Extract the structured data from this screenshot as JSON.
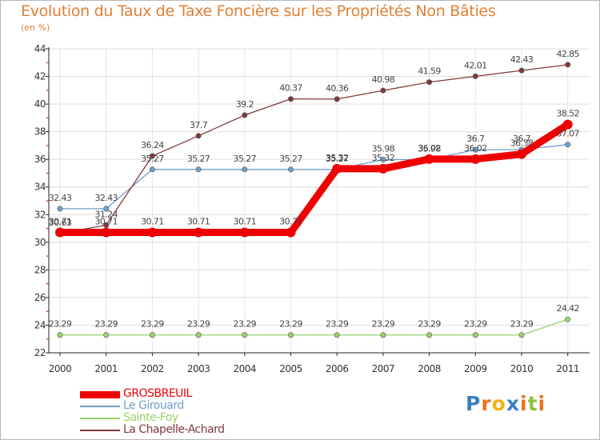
{
  "title": "Evolution du Taux de Taxe Foncière sur les Propriétés Non Bâties",
  "subtitle": "(en %)",
  "logo": {
    "letters": [
      "P",
      "r",
      "o",
      "x",
      "i",
      "t",
      "i"
    ],
    "colors": [
      "#3a7fc6",
      "#e8731a",
      "#f2b21a",
      "#3a7fc6",
      "#e8731a",
      "#8bc23e",
      "#e8731a"
    ]
  },
  "chart_data": {
    "type": "line",
    "title": "Evolution du Taux de Taxe Foncière sur les Propriétés Non Bâties",
    "ylabel": "(en %)",
    "xlabel": "",
    "ylim": [
      22,
      44
    ],
    "yticks": [
      22,
      24,
      26,
      28,
      30,
      32,
      34,
      36,
      38,
      40,
      42,
      44
    ],
    "categories": [
      "2000",
      "2001",
      "2002",
      "2003",
      "2004",
      "2005",
      "2006",
      "2007",
      "2008",
      "2009",
      "2010",
      "2011"
    ],
    "series": [
      {
        "name": "GROSBREUIL",
        "color": "#ee0000",
        "values": [
          30.71,
          30.71,
          30.71,
          30.71,
          30.71,
          30.71,
          35.32,
          35.32,
          36.02,
          36.02,
          36.38,
          38.52
        ],
        "labels": [
          "30.71",
          "30.71",
          "30.71",
          "30.71",
          "30.71",
          "30.71",
          "35.32",
          "35.32",
          "36.02",
          "36.02",
          "36.38",
          "38.52"
        ]
      },
      {
        "name": "Le Girouard",
        "color": "#6f9fc9",
        "values": [
          32.43,
          32.43,
          35.27,
          35.27,
          35.27,
          35.27,
          35.27,
          35.98,
          35.98,
          36.7,
          36.7,
          37.07
        ],
        "labels": [
          "32.43",
          "32.43",
          "35.27",
          "35.27",
          "35.27",
          "35.27",
          "35.27",
          "35.98",
          "35.98",
          "36.7",
          "36.7",
          "37.07"
        ]
      },
      {
        "name": "Sainte-Foy",
        "color": "#99d36a",
        "values": [
          23.29,
          23.29,
          23.29,
          23.29,
          23.29,
          23.29,
          23.29,
          23.29,
          23.29,
          23.29,
          23.29,
          24.42
        ],
        "labels": [
          "23.29",
          "23.29",
          "23.29",
          "23.29",
          "23.29",
          "23.29",
          "23.29",
          "23.29",
          "23.29",
          "23.29",
          "23.29",
          "24.42"
        ]
      },
      {
        "name": "La Chapelle-Achard",
        "color": "#7e3b3b",
        "values": [
          30.63,
          31.24,
          36.24,
          37.7,
          39.2,
          40.37,
          40.36,
          40.98,
          41.59,
          42.01,
          42.43,
          42.85
        ],
        "labels": [
          "30.63",
          "31.24",
          "36.24",
          "37.7",
          "39.2",
          "40.37",
          "40.36",
          "40.98",
          "41.59",
          "42.01",
          "42.43",
          "42.85"
        ]
      }
    ]
  }
}
